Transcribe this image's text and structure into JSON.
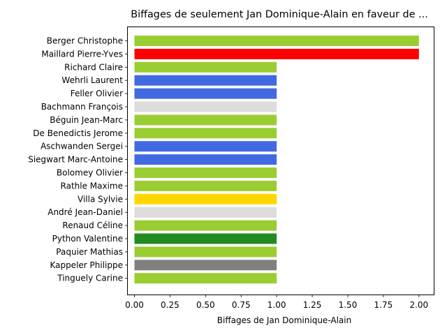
{
  "chart_data": {
    "type": "bar",
    "orientation": "horizontal",
    "title": "Biffages de seulement Jan Dominique-Alain en faveur de ...",
    "xlabel": "Biffages de Jan Dominique-Alain",
    "ylabel": "",
    "xlim": [
      0,
      2.1
    ],
    "xticks": [
      "0.00",
      "0.25",
      "0.50",
      "0.75",
      "1.00",
      "1.25",
      "1.50",
      "1.75",
      "2.00"
    ],
    "grid": false,
    "legend": "none",
    "categories": [
      "Berger Christophe",
      "Maillard Pierre-Yves",
      "Richard Claire",
      "Wehrli Laurent",
      "Feller Olivier",
      "Bachmann François",
      "Béguin Jean-Marc",
      "De Benedictis Jerome",
      "Aschwanden Sergei",
      "Siegwart Marc-Antoine",
      "Bolomey Olivier",
      "Rathle Maxime",
      "Villa Sylvie",
      "André Jean-Daniel",
      "Renaud Céline",
      "Python Valentine",
      "Paquier Mathias",
      "Kappeler Philippe",
      "Tinguely Carine"
    ],
    "values": [
      2,
      2,
      1,
      1,
      1,
      1,
      1,
      1,
      1,
      1,
      1,
      1,
      1,
      1,
      1,
      1,
      1,
      1,
      1
    ],
    "colors": [
      "#9acd32",
      "#ff0000",
      "#9acd32",
      "#4169e1",
      "#4169e1",
      "#dcdcdc",
      "#9acd32",
      "#9acd32",
      "#4169e1",
      "#4169e1",
      "#9acd32",
      "#9acd32",
      "#ffd700",
      "#dcdcdc",
      "#9acd32",
      "#228b22",
      "#9acd32",
      "#808080",
      "#9acd32"
    ]
  }
}
